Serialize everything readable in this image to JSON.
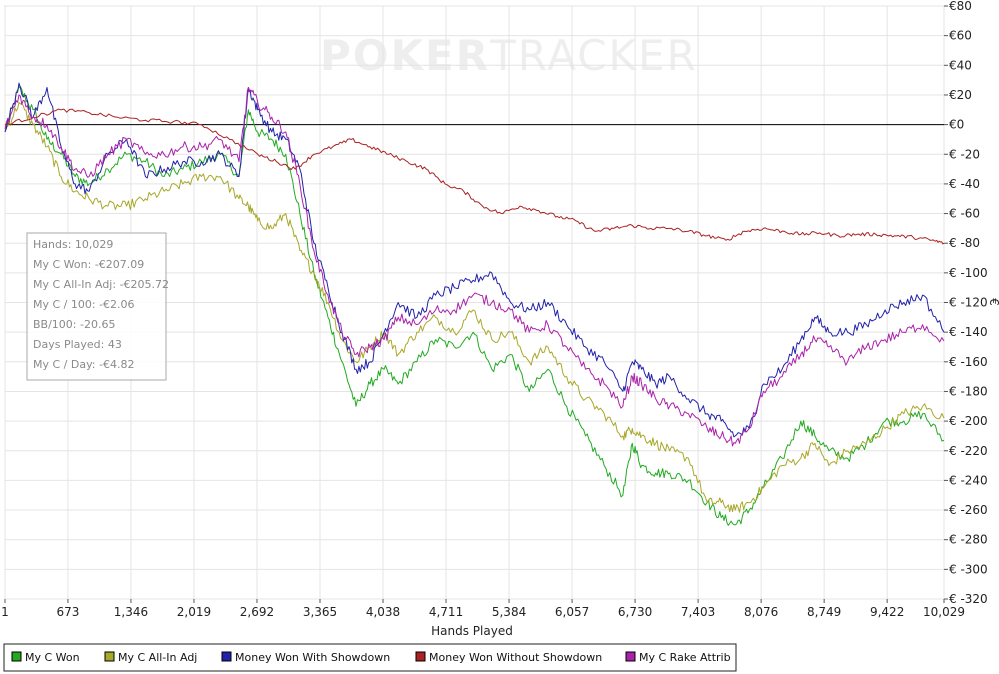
{
  "watermark": {
    "bold_part": "POKER",
    "light_part": "TRACKER"
  },
  "stats_box": [
    "Hands: 10,029",
    "My C Won: -€207.09",
    "My C All-In Adj: -€205.72",
    "My C / 100: -€2.06",
    "BB/100: -20.65",
    "Days Played: 43",
    "My C / Day: -€4.82"
  ],
  "chart_data": {
    "type": "line",
    "title": "",
    "xlabel": "Hands Played",
    "ylabel": "€",
    "xlim": [
      1,
      10029
    ],
    "ylim": [
      -320,
      80
    ],
    "x_ticks": [
      1,
      673,
      1346,
      2019,
      2692,
      3365,
      4038,
      4711,
      5384,
      6057,
      6730,
      7403,
      8076,
      8749,
      9422,
      10029
    ],
    "x_tick_labels": [
      "1",
      "673",
      "1,346",
      "2,019",
      "2,692",
      "3,365",
      "4,038",
      "4,711",
      "5,384",
      "6,057",
      "6,730",
      "7,403",
      "8,076",
      "8,749",
      "9,422",
      "10,029"
    ],
    "y_ticks": [
      80,
      60,
      40,
      20,
      0,
      -20,
      -40,
      -60,
      -80,
      -100,
      -120,
      -140,
      -160,
      -180,
      -200,
      -220,
      -240,
      -260,
      -280,
      -300,
      -320
    ],
    "y_tick_labels": [
      "€80",
      "€60",
      "€40",
      "€20",
      "€0",
      "€ -20",
      "€ -40",
      "€ -60",
      "€ -80",
      "€ -100",
      "€ -120",
      "€ -140",
      "€ -160",
      "€ -180",
      "€ -200",
      "€ -220",
      "€ -240",
      "€ -260",
      "€ -280",
      "€ -300",
      "€ -320"
    ],
    "grid": true,
    "legend_position": "bottom",
    "series": [
      {
        "name": "My C Won",
        "color": "#22aa22",
        "x": [
          1,
          150,
          300,
          450,
          600,
          750,
          900,
          1100,
          1300,
          1500,
          1700,
          1900,
          2100,
          2300,
          2500,
          2600,
          2700,
          2850,
          3000,
          3150,
          3300,
          3450,
          3600,
          3750,
          3900,
          4050,
          4200,
          4400,
          4600,
          4800,
          5000,
          5200,
          5400,
          5600,
          5800,
          6000,
          6200,
          6400,
          6600,
          6700,
          6800,
          6950,
          7100,
          7300,
          7500,
          7650,
          7800,
          7950,
          8100,
          8300,
          8500,
          8650,
          8800,
          9000,
          9200,
          9400,
          9600,
          9800,
          10029
        ],
        "y": [
          -5,
          25,
          10,
          -10,
          -20,
          -35,
          -40,
          -30,
          -20,
          -25,
          -35,
          -30,
          -25,
          -20,
          -35,
          10,
          -5,
          -10,
          -20,
          -60,
          -100,
          -130,
          -160,
          -190,
          -175,
          -165,
          -175,
          -160,
          -145,
          -150,
          -140,
          -165,
          -155,
          -180,
          -165,
          -190,
          -210,
          -230,
          -250,
          -215,
          -230,
          -235,
          -235,
          -240,
          -255,
          -265,
          -270,
          -260,
          -245,
          -225,
          -200,
          -210,
          -220,
          -225,
          -215,
          -200,
          -200,
          -195,
          -213
        ]
      },
      {
        "name": "My C All-In Adj",
        "color": "#a8a82a",
        "x": [
          1,
          150,
          300,
          450,
          600,
          750,
          900,
          1100,
          1300,
          1500,
          1700,
          1900,
          2100,
          2300,
          2500,
          2600,
          2700,
          2850,
          3000,
          3150,
          3300,
          3450,
          3600,
          3750,
          3900,
          4050,
          4200,
          4400,
          4600,
          4800,
          5000,
          5200,
          5400,
          5600,
          5800,
          6000,
          6200,
          6400,
          6600,
          6700,
          6800,
          6950,
          7100,
          7300,
          7500,
          7650,
          7800,
          7950,
          8100,
          8300,
          8500,
          8650,
          8800,
          9000,
          9200,
          9400,
          9600,
          9800,
          10029
        ],
        "y": [
          -5,
          15,
          0,
          -15,
          -35,
          -45,
          -50,
          -55,
          -55,
          -50,
          -45,
          -40,
          -35,
          -35,
          -50,
          -55,
          -65,
          -70,
          -60,
          -85,
          -100,
          -120,
          -145,
          -160,
          -150,
          -140,
          -155,
          -140,
          -130,
          -140,
          -125,
          -145,
          -140,
          -160,
          -150,
          -170,
          -185,
          -195,
          -210,
          -205,
          -210,
          -215,
          -220,
          -225,
          -255,
          -255,
          -260,
          -255,
          -245,
          -230,
          -225,
          -215,
          -230,
          -220,
          -215,
          -205,
          -195,
          -190,
          -198
        ]
      },
      {
        "name": "Money Won With Showdown",
        "color": "#2222aa",
        "x": [
          1,
          150,
          300,
          450,
          600,
          750,
          900,
          1100,
          1300,
          1500,
          1700,
          1900,
          2100,
          2300,
          2500,
          2600,
          2700,
          2850,
          3000,
          3150,
          3300,
          3450,
          3600,
          3750,
          3900,
          4050,
          4200,
          4400,
          4600,
          4800,
          5000,
          5200,
          5400,
          5600,
          5800,
          6000,
          6200,
          6400,
          6600,
          6700,
          6800,
          6950,
          7100,
          7300,
          7500,
          7650,
          7800,
          7950,
          8100,
          8300,
          8500,
          8650,
          8800,
          9000,
          9200,
          9400,
          9600,
          9800,
          10029
        ],
        "y": [
          -5,
          28,
          5,
          25,
          -15,
          -40,
          -45,
          -20,
          -10,
          -35,
          -30,
          -25,
          -25,
          -20,
          -35,
          25,
          10,
          -5,
          -10,
          -30,
          -80,
          -110,
          -140,
          -165,
          -160,
          -140,
          -120,
          -130,
          -115,
          -110,
          -105,
          -100,
          -120,
          -125,
          -120,
          -135,
          -150,
          -160,
          -180,
          -160,
          -165,
          -175,
          -170,
          -185,
          -195,
          -200,
          -210,
          -205,
          -175,
          -165,
          -145,
          -130,
          -140,
          -140,
          -135,
          -125,
          -120,
          -115,
          -140
        ]
      },
      {
        "name": "Money Won Without Showdown",
        "color": "#aa2222",
        "x": [
          1,
          300,
          600,
          900,
          1200,
          1500,
          1800,
          2100,
          2400,
          2700,
          2900,
          3100,
          3300,
          3500,
          3700,
          3900,
          4100,
          4300,
          4500,
          4700,
          4900,
          5100,
          5300,
          5500,
          5700,
          5900,
          6100,
          6300,
          6500,
          6700,
          6900,
          7100,
          7300,
          7500,
          7700,
          7900,
          8100,
          8300,
          8500,
          8700,
          8900,
          9100,
          9300,
          9500,
          9700,
          9900,
          10029
        ],
        "y": [
          0,
          5,
          10,
          8,
          5,
          3,
          2,
          0,
          -10,
          -20,
          -25,
          -30,
          -20,
          -15,
          -10,
          -15,
          -20,
          -25,
          -30,
          -40,
          -45,
          -55,
          -60,
          -55,
          -58,
          -62,
          -65,
          -72,
          -70,
          -68,
          -70,
          -70,
          -72,
          -75,
          -78,
          -72,
          -70,
          -72,
          -74,
          -73,
          -75,
          -74,
          -74,
          -75,
          -76,
          -78,
          -80
        ]
      },
      {
        "name": "My C Rake Attrib",
        "color": "#aa22aa",
        "x": [
          1,
          150,
          300,
          450,
          600,
          750,
          900,
          1100,
          1300,
          1500,
          1700,
          1900,
          2100,
          2300,
          2500,
          2600,
          2700,
          2850,
          3000,
          3150,
          3300,
          3450,
          3600,
          3750,
          3900,
          4050,
          4200,
          4400,
          4600,
          4800,
          5000,
          5200,
          5400,
          5600,
          5800,
          6000,
          6200,
          6400,
          6600,
          6700,
          6800,
          6950,
          7100,
          7300,
          7500,
          7650,
          7800,
          7950,
          8100,
          8300,
          8500,
          8650,
          8800,
          9000,
          9200,
          9400,
          9600,
          9800,
          10029
        ],
        "y": [
          -3,
          20,
          5,
          0,
          -15,
          -30,
          -35,
          -20,
          -10,
          -20,
          -20,
          -15,
          -15,
          -10,
          -25,
          25,
          15,
          5,
          -5,
          -40,
          -85,
          -115,
          -140,
          -155,
          -150,
          -145,
          -130,
          -135,
          -125,
          -125,
          -115,
          -120,
          -125,
          -140,
          -135,
          -150,
          -165,
          -175,
          -190,
          -170,
          -175,
          -185,
          -190,
          -195,
          -205,
          -210,
          -215,
          -205,
          -180,
          -170,
          -155,
          -145,
          -150,
          -160,
          -150,
          -145,
          -140,
          -135,
          -146
        ]
      }
    ]
  }
}
